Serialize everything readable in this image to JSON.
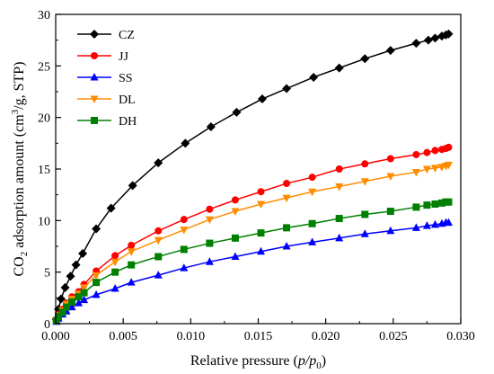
{
  "chart_data": {
    "type": "line",
    "xlabel": "Relative pressure (p/p0)",
    "ylabel": "CO2 adsorption amount (cm3/g, STP)",
    "xlim": [
      0,
      0.03
    ],
    "ylim": [
      0,
      30
    ],
    "x_ticks": [
      "0.000",
      "0.005",
      "0.010",
      "0.015",
      "0.020",
      "0.025",
      "0.030"
    ],
    "y_ticks": [
      "0",
      "5",
      "10",
      "15",
      "20",
      "25",
      "30"
    ],
    "grid": false,
    "legend_position": "top-left",
    "series": [
      {
        "name": "CZ",
        "color": "#000000",
        "marker": "diamond",
        "points": [
          [
            5e-05,
            0.4
          ],
          [
            0.0002,
            1.4
          ],
          [
            0.0004,
            2.4
          ],
          [
            0.0007,
            3.5
          ],
          [
            0.0011,
            4.6
          ],
          [
            0.0015,
            5.7
          ],
          [
            0.002,
            6.8
          ],
          [
            0.003,
            9.2
          ],
          [
            0.0041,
            11.2
          ],
          [
            0.0057,
            13.4
          ],
          [
            0.0076,
            15.6
          ],
          [
            0.0096,
            17.5
          ],
          [
            0.0115,
            19.1
          ],
          [
            0.0134,
            20.5
          ],
          [
            0.0153,
            21.8
          ],
          [
            0.0171,
            22.8
          ],
          [
            0.0191,
            23.9
          ],
          [
            0.021,
            24.8
          ],
          [
            0.0229,
            25.7
          ],
          [
            0.0248,
            26.5
          ],
          [
            0.0267,
            27.2
          ],
          [
            0.0276,
            27.5
          ],
          [
            0.0281,
            27.7
          ],
          [
            0.0286,
            27.9
          ],
          [
            0.0289,
            28.0
          ],
          [
            0.0291,
            28.1
          ]
        ]
      },
      {
        "name": "JJ",
        "color": "#ff0000",
        "marker": "circle",
        "points": [
          [
            5e-05,
            0.3
          ],
          [
            0.0002,
            0.9
          ],
          [
            0.0005,
            1.4
          ],
          [
            0.0008,
            2.0
          ],
          [
            0.0012,
            2.6
          ],
          [
            0.0017,
            3.1
          ],
          [
            0.0021,
            3.8
          ],
          [
            0.003,
            5.1
          ],
          [
            0.0044,
            6.6
          ],
          [
            0.0056,
            7.6
          ],
          [
            0.0076,
            9.0
          ],
          [
            0.0095,
            10.1
          ],
          [
            0.0114,
            11.1
          ],
          [
            0.0133,
            12.0
          ],
          [
            0.0152,
            12.8
          ],
          [
            0.0171,
            13.6
          ],
          [
            0.019,
            14.2
          ],
          [
            0.021,
            15.0
          ],
          [
            0.0229,
            15.5
          ],
          [
            0.0248,
            16.0
          ],
          [
            0.0267,
            16.4
          ],
          [
            0.0275,
            16.6
          ],
          [
            0.0281,
            16.8
          ],
          [
            0.0286,
            16.9
          ],
          [
            0.0289,
            17.0
          ],
          [
            0.0291,
            17.1
          ]
        ]
      },
      {
        "name": "SS",
        "color": "#0000ff",
        "marker": "triangle-up",
        "points": [
          [
            5e-05,
            0.2
          ],
          [
            0.0002,
            0.5
          ],
          [
            0.0005,
            0.9
          ],
          [
            0.0008,
            1.2
          ],
          [
            0.0012,
            1.6
          ],
          [
            0.0017,
            2.0
          ],
          [
            0.0021,
            2.3
          ],
          [
            0.003,
            2.8
          ],
          [
            0.0044,
            3.4
          ],
          [
            0.0056,
            4.0
          ],
          [
            0.0076,
            4.7
          ],
          [
            0.0095,
            5.4
          ],
          [
            0.0114,
            6.0
          ],
          [
            0.0133,
            6.5
          ],
          [
            0.0152,
            7.0
          ],
          [
            0.0171,
            7.5
          ],
          [
            0.019,
            7.9
          ],
          [
            0.021,
            8.3
          ],
          [
            0.0229,
            8.7
          ],
          [
            0.0248,
            9.0
          ],
          [
            0.0267,
            9.3
          ],
          [
            0.0275,
            9.5
          ],
          [
            0.0281,
            9.6
          ],
          [
            0.0286,
            9.7
          ],
          [
            0.0289,
            9.8
          ],
          [
            0.0291,
            9.8
          ]
        ]
      },
      {
        "name": "DL",
        "color": "#ff8c00",
        "marker": "triangle-down",
        "points": [
          [
            5e-05,
            0.3
          ],
          [
            0.0002,
            0.8
          ],
          [
            0.0005,
            1.3
          ],
          [
            0.0008,
            1.9
          ],
          [
            0.0012,
            2.4
          ],
          [
            0.0017,
            2.9
          ],
          [
            0.0021,
            3.5
          ],
          [
            0.003,
            4.7
          ],
          [
            0.0044,
            6.0
          ],
          [
            0.0056,
            7.0
          ],
          [
            0.0076,
            8.1
          ],
          [
            0.0095,
            9.1
          ],
          [
            0.0114,
            10.1
          ],
          [
            0.0133,
            10.9
          ],
          [
            0.0152,
            11.6
          ],
          [
            0.0171,
            12.2
          ],
          [
            0.019,
            12.8
          ],
          [
            0.021,
            13.3
          ],
          [
            0.0229,
            13.8
          ],
          [
            0.0248,
            14.3
          ],
          [
            0.0267,
            14.7
          ],
          [
            0.0275,
            15.0
          ],
          [
            0.0281,
            15.1
          ],
          [
            0.0286,
            15.2
          ],
          [
            0.0289,
            15.3
          ],
          [
            0.0291,
            15.4
          ]
        ]
      },
      {
        "name": "DH",
        "color": "#008000",
        "marker": "square",
        "points": [
          [
            5e-05,
            0.3
          ],
          [
            0.0002,
            0.7
          ],
          [
            0.0005,
            1.1
          ],
          [
            0.0008,
            1.6
          ],
          [
            0.0012,
            2.1
          ],
          [
            0.0017,
            2.6
          ],
          [
            0.0021,
            3.0
          ],
          [
            0.003,
            4.0
          ],
          [
            0.0044,
            5.0
          ],
          [
            0.0056,
            5.7
          ],
          [
            0.0076,
            6.5
          ],
          [
            0.0095,
            7.2
          ],
          [
            0.0114,
            7.8
          ],
          [
            0.0133,
            8.3
          ],
          [
            0.0152,
            8.8
          ],
          [
            0.0171,
            9.3
          ],
          [
            0.019,
            9.7
          ],
          [
            0.021,
            10.2
          ],
          [
            0.0229,
            10.6
          ],
          [
            0.0248,
            10.9
          ],
          [
            0.0267,
            11.3
          ],
          [
            0.0275,
            11.5
          ],
          [
            0.0281,
            11.6
          ],
          [
            0.0286,
            11.7
          ],
          [
            0.0289,
            11.8
          ],
          [
            0.0291,
            11.8
          ]
        ]
      }
    ]
  }
}
